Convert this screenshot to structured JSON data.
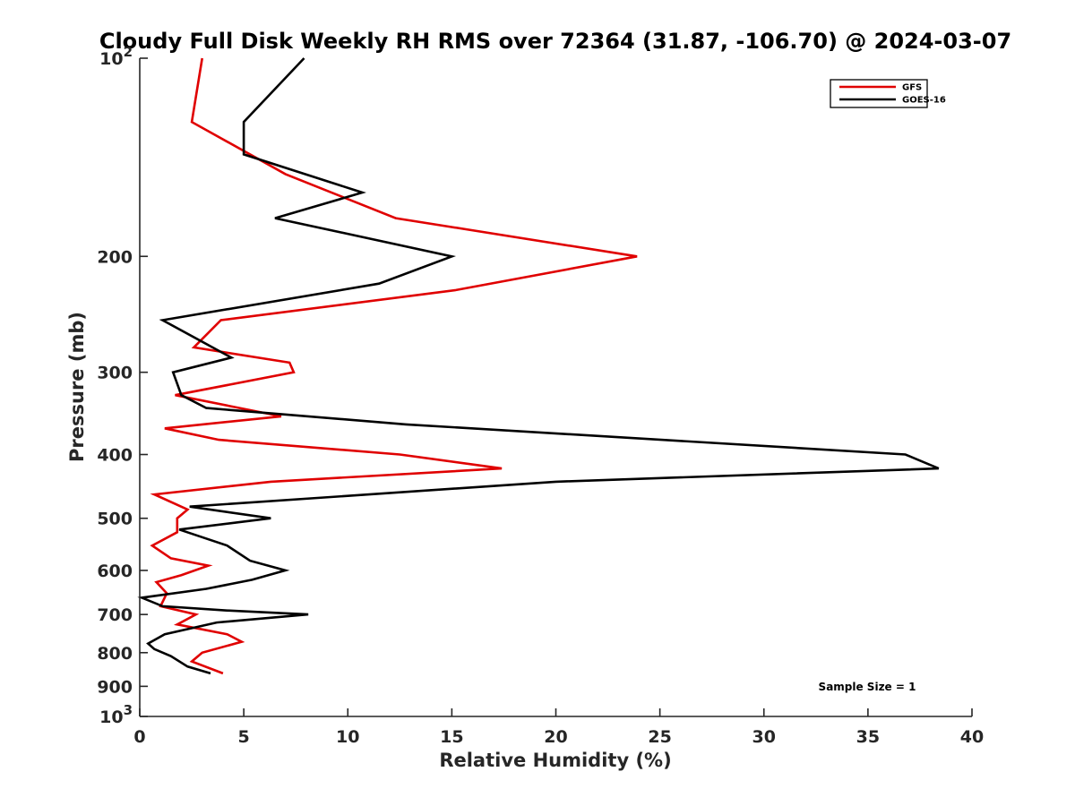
{
  "chart_data": {
    "type": "line",
    "title": "Cloudy Full Disk Weekly RH RMS over 72364 (31.87, -106.70) @ 2024-03-07",
    "xlabel": "Relative Humidity (%)",
    "ylabel": "Pressure (mb)",
    "xlim": [
      0,
      40
    ],
    "ylim": [
      100,
      1000
    ],
    "y_scale": "log",
    "y_reversed": true,
    "grid": false,
    "legend_position": "top-right",
    "x_ticks": [
      "0",
      "5",
      "10",
      "15",
      "20",
      "25",
      "30",
      "35",
      "40"
    ],
    "y_ticks": [
      {
        "value": 100,
        "base": "10",
        "exp": "2"
      },
      {
        "value": 200,
        "base": "200",
        "exp": ""
      },
      {
        "value": 300,
        "base": "300",
        "exp": ""
      },
      {
        "value": 400,
        "base": "400",
        "exp": ""
      },
      {
        "value": 500,
        "base": "500",
        "exp": ""
      },
      {
        "value": 600,
        "base": "600",
        "exp": ""
      },
      {
        "value": 700,
        "base": "700",
        "exp": ""
      },
      {
        "value": 800,
        "base": "800",
        "exp": ""
      },
      {
        "value": 900,
        "base": "900",
        "exp": ""
      },
      {
        "value": 1000,
        "base": "10",
        "exp": "3"
      }
    ],
    "annotation": "Sample Size = 1",
    "series": [
      {
        "name": "GFS",
        "color": "#e00000",
        "points": [
          [
            3.0,
            100
          ],
          [
            2.5,
            125
          ],
          [
            7.0,
            150
          ],
          [
            12.3,
            175
          ],
          [
            23.9,
            200
          ],
          [
            15.2,
            225
          ],
          [
            3.9,
            250
          ],
          [
            2.6,
            275
          ],
          [
            7.2,
            290
          ],
          [
            7.4,
            300
          ],
          [
            1.7,
            325
          ],
          [
            6.8,
            350
          ],
          [
            1.2,
            365
          ],
          [
            3.8,
            380
          ],
          [
            12.5,
            400
          ],
          [
            17.4,
            420
          ],
          [
            6.3,
            440
          ],
          [
            0.7,
            460
          ],
          [
            2.3,
            485
          ],
          [
            1.8,
            500
          ],
          [
            1.8,
            525
          ],
          [
            0.6,
            550
          ],
          [
            1.5,
            575
          ],
          [
            3.3,
            590
          ],
          [
            2.0,
            610
          ],
          [
            0.8,
            625
          ],
          [
            1.3,
            650
          ],
          [
            1.0,
            680
          ],
          [
            2.7,
            700
          ],
          [
            1.8,
            725
          ],
          [
            4.2,
            750
          ],
          [
            4.9,
            770
          ],
          [
            3.0,
            800
          ],
          [
            2.5,
            825
          ],
          [
            4.0,
            860
          ]
        ]
      },
      {
        "name": "GOES-16",
        "color": "#000000",
        "points": [
          [
            7.9,
            100
          ],
          [
            5.0,
            125
          ],
          [
            5.0,
            140
          ],
          [
            10.7,
            160
          ],
          [
            6.5,
            175
          ],
          [
            15.0,
            200
          ],
          [
            11.5,
            220
          ],
          [
            1.1,
            250
          ],
          [
            4.4,
            285
          ],
          [
            1.6,
            300
          ],
          [
            2.0,
            325
          ],
          [
            3.2,
            340
          ],
          [
            12.8,
            360
          ],
          [
            36.8,
            400
          ],
          [
            38.4,
            420
          ],
          [
            20.0,
            440
          ],
          [
            2.4,
            480
          ],
          [
            6.3,
            500
          ],
          [
            1.9,
            520
          ],
          [
            4.2,
            550
          ],
          [
            5.3,
            580
          ],
          [
            7.0,
            600
          ],
          [
            5.4,
            620
          ],
          [
            3.2,
            640
          ],
          [
            0.1,
            660
          ],
          [
            1.1,
            680
          ],
          [
            4.1,
            690
          ],
          [
            8.1,
            700
          ],
          [
            3.7,
            720
          ],
          [
            1.2,
            750
          ],
          [
            0.4,
            775
          ],
          [
            0.7,
            790
          ],
          [
            1.5,
            810
          ],
          [
            2.3,
            840
          ],
          [
            3.4,
            860
          ]
        ]
      }
    ]
  }
}
